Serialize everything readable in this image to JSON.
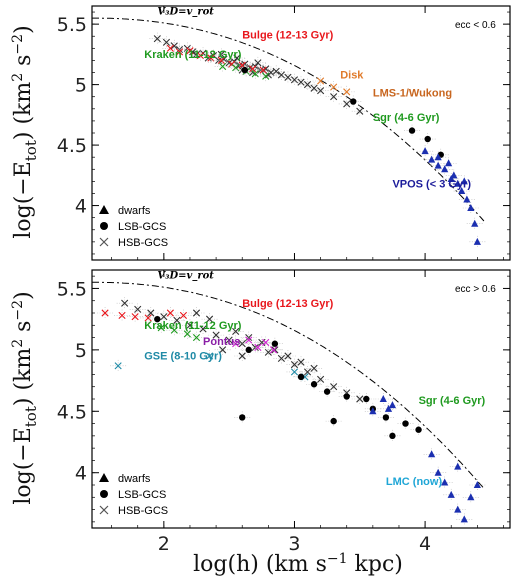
{
  "chart_data": [
    {
      "type": "scatter",
      "panel": "top",
      "ylabel": "log(−E_tot) (km² s⁻²)",
      "ylim": [
        3.55,
        5.65
      ],
      "xlim": [
        1.45,
        4.65
      ],
      "yticks": [
        "5.5",
        "5",
        "4.5",
        "4"
      ],
      "condition_label": "ecc < 0.6",
      "curve_label": "V₃D=v_rot",
      "legend": [
        "dwarfs",
        "LSB-GCS",
        "HSB-GCS"
      ],
      "annotations": [
        {
          "text": "Bulge (12-13 Gyr)",
          "color": "#e8171c"
        },
        {
          "text": "Kraken (11-12 Gyr)",
          "color": "#1f9a1f"
        },
        {
          "text": "Disk",
          "color": "#e07a2a"
        },
        {
          "text": "LMS-1/Wukong",
          "color": "#c8661f"
        },
        {
          "text": "Sgr (4-6 Gyr)",
          "color": "#1f9a1f"
        },
        {
          "text": "VPOS (< 3 Gyr)",
          "color": "#1b1b9a"
        }
      ],
      "series": [
        {
          "name": "HSB-GCS",
          "marker": "x",
          "points": [
            [
              1.95,
              5.38
            ],
            [
              2.02,
              5.35
            ],
            [
              2.08,
              5.32
            ],
            [
              2.12,
              5.29
            ],
            [
              2.18,
              5.3
            ],
            [
              2.22,
              5.27
            ],
            [
              2.25,
              5.25
            ],
            [
              2.3,
              5.26
            ],
            [
              2.34,
              5.22
            ],
            [
              2.38,
              5.24
            ],
            [
              2.42,
              5.2
            ],
            [
              2.46,
              5.21
            ],
            [
              2.5,
              5.18
            ],
            [
              2.54,
              5.19
            ],
            [
              2.58,
              5.16
            ],
            [
              2.62,
              5.17
            ],
            [
              2.66,
              5.14
            ],
            [
              2.7,
              5.15
            ],
            [
              2.74,
              5.12
            ],
            [
              2.78,
              5.13
            ],
            [
              2.82,
              5.1
            ],
            [
              2.86,
              5.11
            ],
            [
              2.9,
              5.08
            ],
            [
              2.95,
              5.06
            ],
            [
              3.0,
              5.04
            ],
            [
              3.05,
              5.02
            ],
            [
              3.1,
              5.0
            ],
            [
              3.15,
              4.97
            ],
            [
              3.2,
              4.95
            ],
            [
              3.3,
              4.9
            ],
            [
              3.4,
              4.84
            ],
            [
              3.5,
              4.78
            ],
            [
              2.6,
              5.12
            ],
            [
              2.68,
              5.1
            ],
            [
              2.72,
              5.18
            ],
            [
              2.8,
              5.08
            ],
            [
              2.56,
              5.22
            ],
            [
              2.44,
              5.25
            ]
          ]
        },
        {
          "name": "HSB-GCS (Bulge)",
          "marker": "x-red",
          "points": [
            [
              2.05,
              5.3
            ],
            [
              2.12,
              5.27
            ],
            [
              2.2,
              5.28
            ],
            [
              2.28,
              5.24
            ],
            [
              2.36,
              5.22
            ],
            [
              2.44,
              5.2
            ],
            [
              2.52,
              5.17
            ],
            [
              2.6,
              5.16
            ],
            [
              2.68,
              5.13
            ],
            [
              2.76,
              5.12
            ]
          ]
        },
        {
          "name": "HSB-GCS (Kraken)",
          "marker": "x-green",
          "points": [
            [
              2.45,
              5.15
            ],
            [
              2.55,
              5.14
            ],
            [
              2.63,
              5.11
            ],
            [
              2.7,
              5.09
            ],
            [
              2.78,
              5.07
            ]
          ]
        },
        {
          "name": "HSB-GCS (Disk)",
          "marker": "x-orange",
          "points": [
            [
              3.2,
              5.03
            ],
            [
              3.3,
              4.98
            ],
            [
              3.4,
              4.94
            ]
          ]
        },
        {
          "name": "LSB-GCS",
          "marker": "circle",
          "points": [
            [
              2.62,
              5.12
            ],
            [
              3.45,
              4.86
            ],
            [
              3.9,
              4.62
            ],
            [
              4.02,
              4.55
            ],
            [
              4.12,
              4.42
            ]
          ]
        },
        {
          "name": "dwarfs",
          "marker": "triangle",
          "points": [
            [
              4.0,
              4.45
            ],
            [
              4.05,
              4.38
            ],
            [
              4.1,
              4.33
            ],
            [
              4.15,
              4.3
            ],
            [
              4.2,
              4.22
            ],
            [
              4.25,
              4.18
            ],
            [
              4.28,
              4.12
            ],
            [
              4.32,
              4.05
            ],
            [
              4.35,
              3.98
            ],
            [
              4.38,
              3.85
            ],
            [
              4.1,
              4.4
            ],
            [
              4.22,
              4.25
            ],
            [
              4.3,
              4.2
            ],
            [
              4.18,
              4.35
            ],
            [
              4.4,
              3.7
            ]
          ]
        }
      ]
    },
    {
      "type": "scatter",
      "panel": "bottom",
      "xlabel": "log(h) (km s⁻¹ kpc)",
      "ylabel": "log(−E_tot) (km² s⁻²)",
      "ylim": [
        3.55,
        5.65
      ],
      "xlim": [
        1.45,
        4.65
      ],
      "xticks": [
        "2",
        "3",
        "4"
      ],
      "yticks": [
        "5.5",
        "5",
        "4.5",
        "4"
      ],
      "condition_label": "ecc > 0.6",
      "curve_label": "V₃D=v_rot",
      "legend": [
        "dwarfs",
        "LSB-GCS",
        "HSB-GCS"
      ],
      "annotations": [
        {
          "text": "Bulge (12-13 Gyr)",
          "color": "#e8171c"
        },
        {
          "text": "Kraken (11-12 Gyr)",
          "color": "#1f9a1f"
        },
        {
          "text": "Pontus",
          "color": "#8a1fa6"
        },
        {
          "text": "GSE (8-10 Gyr)",
          "color": "#1f8aa6"
        },
        {
          "text": "Sgr (4-6 Gyr)",
          "color": "#1f9a1f"
        },
        {
          "text": "LMC (now)",
          "color": "#1fa6d6"
        }
      ],
      "series": [
        {
          "name": "HSB-GCS",
          "marker": "x",
          "points": [
            [
              1.7,
              5.38
            ],
            [
              1.8,
              5.33
            ],
            [
              1.9,
              5.3
            ],
            [
              2.0,
              5.27
            ],
            [
              2.1,
              5.24
            ],
            [
              2.2,
              5.2
            ],
            [
              2.3,
              5.17
            ],
            [
              2.4,
              5.12
            ],
            [
              2.5,
              5.08
            ],
            [
              2.6,
              5.05
            ],
            [
              2.7,
              5.02
            ],
            [
              2.8,
              4.98
            ],
            [
              2.9,
              4.93
            ],
            [
              3.0,
              4.88
            ],
            [
              3.1,
              4.82
            ],
            [
              3.2,
              4.76
            ],
            [
              3.3,
              4.7
            ],
            [
              3.4,
              4.65
            ],
            [
              3.5,
              4.6
            ],
            [
              2.25,
              5.3
            ],
            [
              2.35,
              5.25
            ],
            [
              2.55,
              5.15
            ],
            [
              2.65,
              5.1
            ],
            [
              2.75,
              5.06
            ],
            [
              2.85,
              5.0
            ],
            [
              2.95,
              4.95
            ],
            [
              3.05,
              4.9
            ],
            [
              3.15,
              4.85
            ],
            [
              2.45,
              5.0
            ],
            [
              2.6,
              4.95
            ]
          ]
        },
        {
          "name": "HSB-GCS (Bulge)",
          "marker": "x-red",
          "points": [
            [
              1.55,
              5.3
            ],
            [
              1.68,
              5.28
            ],
            [
              1.78,
              5.27
            ],
            [
              1.88,
              5.26
            ],
            [
              2.05,
              5.3
            ],
            [
              2.15,
              5.28
            ]
          ]
        },
        {
          "name": "HSB-GCS (Kraken)",
          "marker": "x-green",
          "points": [
            [
              1.98,
              5.18
            ],
            [
              2.08,
              5.16
            ],
            [
              2.18,
              5.13
            ],
            [
              2.25,
              5.1
            ]
          ]
        },
        {
          "name": "HSB-GCS (Pontus)",
          "marker": "x-magenta",
          "points": [
            [
              2.55,
              5.05
            ],
            [
              2.65,
              5.08
            ],
            [
              2.72,
              5.02
            ],
            [
              2.78,
              5.06
            ],
            [
              2.84,
              5.0
            ]
          ]
        },
        {
          "name": "HSB-GCS (GSE)",
          "marker": "x-teal",
          "points": [
            [
              1.65,
              4.87
            ],
            [
              2.35,
              4.95
            ],
            [
              3.0,
              4.82
            ],
            [
              3.08,
              4.78
            ]
          ]
        },
        {
          "name": "LSB-GCS",
          "marker": "circle",
          "points": [
            [
              1.95,
              5.25
            ],
            [
              2.65,
              5.0
            ],
            [
              2.85,
              5.05
            ],
            [
              3.05,
              4.78
            ],
            [
              3.15,
              4.72
            ],
            [
              3.25,
              4.66
            ],
            [
              3.4,
              4.62
            ],
            [
              3.55,
              4.6
            ],
            [
              3.6,
              4.52
            ],
            [
              3.7,
              4.45
            ],
            [
              3.85,
              4.4
            ],
            [
              3.95,
              4.35
            ],
            [
              2.6,
              4.45
            ],
            [
              3.3,
              4.42
            ],
            [
              3.75,
              4.3
            ]
          ]
        },
        {
          "name": "dwarfs",
          "marker": "triangle",
          "points": [
            [
              3.75,
              4.55
            ],
            [
              4.05,
              4.15
            ],
            [
              4.1,
              4.0
            ],
            [
              4.15,
              3.92
            ],
            [
              4.2,
              3.82
            ],
            [
              4.25,
              3.7
            ],
            [
              4.3,
              3.62
            ],
            [
              4.35,
              3.8
            ],
            [
              4.4,
              3.9
            ],
            [
              4.25,
              4.05
            ],
            [
              3.6,
              4.5
            ],
            [
              3.68,
              4.6
            ],
            [
              3.72,
              4.52
            ]
          ]
        }
      ]
    }
  ]
}
